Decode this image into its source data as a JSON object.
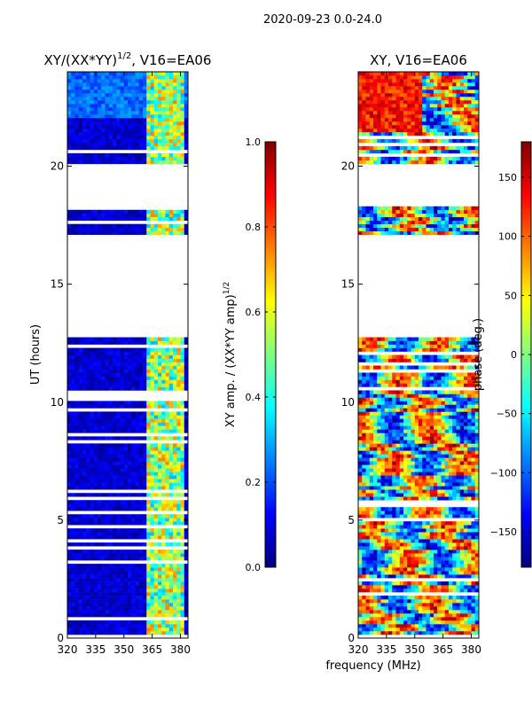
{
  "suptitle": "2020-09-23 0.0-24.0",
  "shared_xlabel": "frequency (MHz)",
  "colors": {
    "jet": [
      "#00007f",
      "#0000ff",
      "#007fff",
      "#00ffff",
      "#7fff7f",
      "#ffff00",
      "#ff7f00",
      "#ff0000",
      "#7f0000"
    ]
  },
  "chart_data": [
    {
      "type": "heatmap",
      "title_main": "XY/(XX*YY)",
      "title_exp": "1/2",
      "title_tail": ", V16=EA06",
      "ylabel": "UT (hours)",
      "xlim": [
        320,
        384
      ],
      "ylim": [
        0,
        24
      ],
      "xticks": [
        320,
        335,
        350,
        365,
        380
      ],
      "yticks": [
        0,
        5,
        10,
        15,
        20
      ],
      "data_gaps_hours": [
        [
          12.75,
          17.15
        ],
        [
          18.3,
          20.15
        ]
      ],
      "colorbar": {
        "label_main": "XY amp. / (XX*YY amp)",
        "label_exp": "1/2",
        "range": [
          0.0,
          1.0
        ],
        "ticks": [
          "0.0",
          "0.2",
          "0.4",
          "0.6",
          "0.8",
          "1.0"
        ],
        "tick_values": [
          0.0,
          0.2,
          0.4,
          0.6,
          0.8,
          1.0
        ]
      }
    },
    {
      "type": "heatmap",
      "title": "XY, V16=EA06",
      "xlim": [
        320,
        384
      ],
      "ylim": [
        0,
        24
      ],
      "xticks": [
        320,
        335,
        350,
        365,
        380
      ],
      "yticks": [
        0,
        5,
        10,
        15,
        20
      ],
      "data_gaps_hours": [
        [
          12.75,
          17.15
        ],
        [
          18.3,
          20.15
        ]
      ],
      "colorbar": {
        "label": "phase (deg.)",
        "range": [
          -180,
          180
        ],
        "ticks": [
          "150",
          "100",
          "50",
          "0",
          "−50",
          "−100",
          "−150"
        ],
        "tick_values": [
          150,
          100,
          50,
          0,
          -50,
          -100,
          -150
        ]
      }
    }
  ]
}
